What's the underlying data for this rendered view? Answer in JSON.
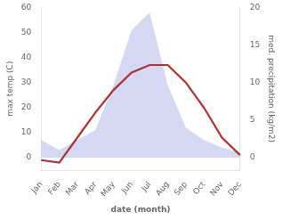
{
  "chart_data": {
    "type": "line",
    "categories": [
      "Jan",
      "Feb",
      "Mar",
      "Apr",
      "May",
      "Jun",
      "Jul",
      "Aug",
      "Sep",
      "Oct",
      "Nov",
      "Dec"
    ],
    "series": [
      {
        "type": "area",
        "color": "#b0b8e8",
        "values": [
          7,
          3,
          7,
          11,
          29,
          51,
          58,
          29,
          12,
          7,
          4,
          2
        ]
      },
      {
        "type": "line",
        "color": "#b03030",
        "values": [
          -1,
          -2,
          8,
          18,
          27,
          34,
          37,
          37,
          30,
          20,
          8,
          1
        ]
      }
    ],
    "xlabel": "date (month)",
    "ylabel": "max temp (C)",
    "y2label": "med. precipitation (kg/m2)",
    "ylim": [
      -5,
      60
    ],
    "yticks": [
      0,
      10,
      20,
      30,
      40,
      50,
      60
    ],
    "y2lim": [
      -1.6666666666666667,
      20
    ],
    "y2ticks": [
      0,
      5,
      10,
      15,
      20
    ],
    "grid": false
  }
}
